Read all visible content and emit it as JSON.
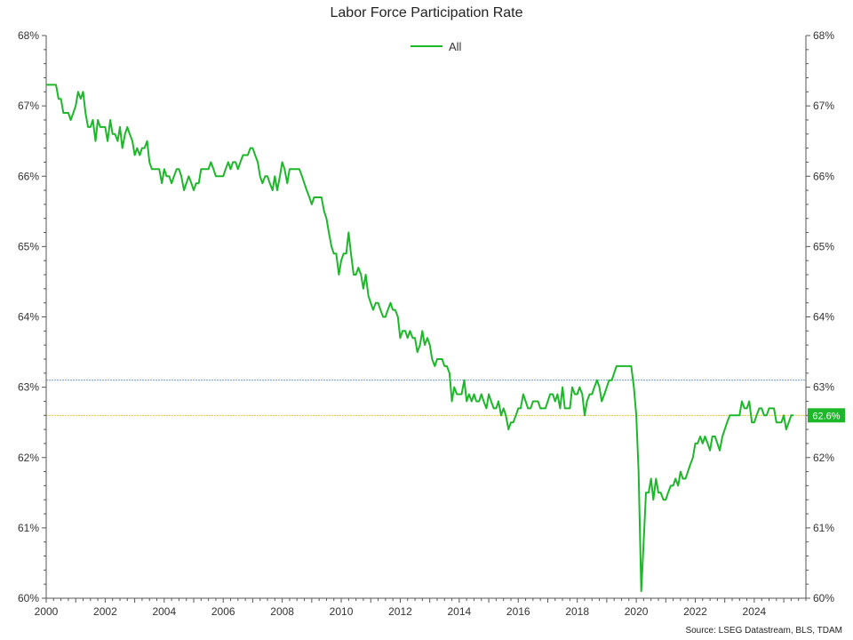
{
  "chart_data": {
    "type": "line",
    "title": "Labor Force Participation Rate",
    "source": "Source: LSEG Datastream, BLS, TDAM",
    "xlabel": "",
    "ylabel": "",
    "xlim": [
      2000,
      2025.75
    ],
    "ylim": [
      60,
      68
    ],
    "x_ticks": [
      2000,
      2002,
      2004,
      2006,
      2008,
      2010,
      2012,
      2014,
      2016,
      2018,
      2020,
      2022,
      2024
    ],
    "y_ticks": [
      "60%",
      "61%",
      "62%",
      "63%",
      "64%",
      "65%",
      "66%",
      "67%",
      "68%"
    ],
    "grid": false,
    "legend_position": "top-center",
    "last_value_label": "62.6%",
    "reference_lines": [
      {
        "y": 63.1,
        "color": "#5b8fc7",
        "style": "dotted"
      },
      {
        "y": 62.6,
        "color": "#e0c020",
        "style": "dotted"
      }
    ],
    "series": [
      {
        "name": "All",
        "color": "#1db82a",
        "points": [
          [
            2000.0,
            67.3
          ],
          [
            2000.17,
            67.3
          ],
          [
            2000.33,
            67.3
          ],
          [
            2000.42,
            67.1
          ],
          [
            2000.5,
            67.1
          ],
          [
            2000.58,
            66.9
          ],
          [
            2000.75,
            66.9
          ],
          [
            2000.83,
            66.8
          ],
          [
            2000.92,
            66.9
          ],
          [
            2001.0,
            67.0
          ],
          [
            2001.08,
            67.2
          ],
          [
            2001.17,
            67.1
          ],
          [
            2001.25,
            67.2
          ],
          [
            2001.33,
            66.9
          ],
          [
            2001.42,
            66.7
          ],
          [
            2001.5,
            66.7
          ],
          [
            2001.58,
            66.8
          ],
          [
            2001.67,
            66.5
          ],
          [
            2001.75,
            66.8
          ],
          [
            2001.83,
            66.7
          ],
          [
            2001.92,
            66.7
          ],
          [
            2002.0,
            66.7
          ],
          [
            2002.08,
            66.5
          ],
          [
            2002.17,
            66.8
          ],
          [
            2002.25,
            66.6
          ],
          [
            2002.33,
            66.6
          ],
          [
            2002.42,
            66.5
          ],
          [
            2002.5,
            66.7
          ],
          [
            2002.58,
            66.4
          ],
          [
            2002.67,
            66.6
          ],
          [
            2002.75,
            66.7
          ],
          [
            2002.83,
            66.6
          ],
          [
            2002.92,
            66.5
          ],
          [
            2003.0,
            66.3
          ],
          [
            2003.08,
            66.4
          ],
          [
            2003.17,
            66.3
          ],
          [
            2003.25,
            66.4
          ],
          [
            2003.33,
            66.4
          ],
          [
            2003.42,
            66.5
          ],
          [
            2003.5,
            66.2
          ],
          [
            2003.58,
            66.1
          ],
          [
            2003.67,
            66.1
          ],
          [
            2003.75,
            66.1
          ],
          [
            2003.83,
            66.1
          ],
          [
            2003.92,
            65.9
          ],
          [
            2004.0,
            66.1
          ],
          [
            2004.08,
            66.0
          ],
          [
            2004.17,
            66.0
          ],
          [
            2004.25,
            65.9
          ],
          [
            2004.33,
            66.0
          ],
          [
            2004.42,
            66.1
          ],
          [
            2004.5,
            66.1
          ],
          [
            2004.58,
            66.0
          ],
          [
            2004.67,
            65.8
          ],
          [
            2004.75,
            65.9
          ],
          [
            2004.83,
            66.0
          ],
          [
            2004.92,
            65.9
          ],
          [
            2005.0,
            65.8
          ],
          [
            2005.08,
            65.9
          ],
          [
            2005.17,
            65.9
          ],
          [
            2005.25,
            66.1
          ],
          [
            2005.33,
            66.1
          ],
          [
            2005.42,
            66.1
          ],
          [
            2005.5,
            66.1
          ],
          [
            2005.58,
            66.2
          ],
          [
            2005.67,
            66.1
          ],
          [
            2005.75,
            66.0
          ],
          [
            2005.83,
            66.0
          ],
          [
            2005.92,
            66.0
          ],
          [
            2006.0,
            66.0
          ],
          [
            2006.08,
            66.1
          ],
          [
            2006.17,
            66.2
          ],
          [
            2006.25,
            66.1
          ],
          [
            2006.33,
            66.2
          ],
          [
            2006.42,
            66.2
          ],
          [
            2006.5,
            66.1
          ],
          [
            2006.58,
            66.2
          ],
          [
            2006.67,
            66.3
          ],
          [
            2006.75,
            66.3
          ],
          [
            2006.83,
            66.3
          ],
          [
            2006.92,
            66.4
          ],
          [
            2007.0,
            66.4
          ],
          [
            2007.08,
            66.3
          ],
          [
            2007.17,
            66.2
          ],
          [
            2007.25,
            66.0
          ],
          [
            2007.33,
            65.9
          ],
          [
            2007.42,
            66.0
          ],
          [
            2007.5,
            66.0
          ],
          [
            2007.58,
            65.9
          ],
          [
            2007.67,
            65.8
          ],
          [
            2007.75,
            66.0
          ],
          [
            2007.83,
            65.8
          ],
          [
            2007.92,
            66.0
          ],
          [
            2008.0,
            66.2
          ],
          [
            2008.08,
            66.1
          ],
          [
            2008.17,
            65.9
          ],
          [
            2008.25,
            66.1
          ],
          [
            2008.33,
            66.1
          ],
          [
            2008.42,
            66.1
          ],
          [
            2008.5,
            66.1
          ],
          [
            2008.58,
            66.1
          ],
          [
            2008.67,
            66.0
          ],
          [
            2008.75,
            65.9
          ],
          [
            2008.83,
            65.8
          ],
          [
            2008.92,
            65.7
          ],
          [
            2009.0,
            65.6
          ],
          [
            2009.08,
            65.7
          ],
          [
            2009.17,
            65.7
          ],
          [
            2009.25,
            65.7
          ],
          [
            2009.33,
            65.7
          ],
          [
            2009.42,
            65.5
          ],
          [
            2009.5,
            65.4
          ],
          [
            2009.58,
            65.2
          ],
          [
            2009.67,
            65.0
          ],
          [
            2009.75,
            64.9
          ],
          [
            2009.83,
            64.9
          ],
          [
            2009.92,
            64.6
          ],
          [
            2010.0,
            64.8
          ],
          [
            2010.08,
            64.9
          ],
          [
            2010.17,
            64.9
          ],
          [
            2010.25,
            65.2
          ],
          [
            2010.33,
            64.9
          ],
          [
            2010.42,
            64.6
          ],
          [
            2010.5,
            64.6
          ],
          [
            2010.58,
            64.7
          ],
          [
            2010.67,
            64.6
          ],
          [
            2010.75,
            64.4
          ],
          [
            2010.83,
            64.6
          ],
          [
            2010.92,
            64.3
          ],
          [
            2011.0,
            64.2
          ],
          [
            2011.08,
            64.1
          ],
          [
            2011.17,
            64.2
          ],
          [
            2011.25,
            64.2
          ],
          [
            2011.33,
            64.1
          ],
          [
            2011.42,
            64.0
          ],
          [
            2011.5,
            64.0
          ],
          [
            2011.58,
            64.1
          ],
          [
            2011.67,
            64.2
          ],
          [
            2011.75,
            64.1
          ],
          [
            2011.83,
            64.1
          ],
          [
            2011.92,
            64.0
          ],
          [
            2012.0,
            63.7
          ],
          [
            2012.08,
            63.8
          ],
          [
            2012.17,
            63.8
          ],
          [
            2012.25,
            63.7
          ],
          [
            2012.33,
            63.8
          ],
          [
            2012.42,
            63.7
          ],
          [
            2012.5,
            63.7
          ],
          [
            2012.58,
            63.5
          ],
          [
            2012.67,
            63.6
          ],
          [
            2012.75,
            63.8
          ],
          [
            2012.83,
            63.6
          ],
          [
            2012.92,
            63.7
          ],
          [
            2013.0,
            63.6
          ],
          [
            2013.08,
            63.4
          ],
          [
            2013.17,
            63.3
          ],
          [
            2013.25,
            63.4
          ],
          [
            2013.33,
            63.4
          ],
          [
            2013.42,
            63.4
          ],
          [
            2013.5,
            63.3
          ],
          [
            2013.58,
            63.3
          ],
          [
            2013.67,
            63.2
          ],
          [
            2013.75,
            62.8
          ],
          [
            2013.83,
            63.0
          ],
          [
            2013.92,
            62.9
          ],
          [
            2014.0,
            62.9
          ],
          [
            2014.08,
            62.9
          ],
          [
            2014.17,
            63.1
          ],
          [
            2014.25,
            62.8
          ],
          [
            2014.33,
            62.9
          ],
          [
            2014.42,
            62.8
          ],
          [
            2014.5,
            62.9
          ],
          [
            2014.58,
            62.8
          ],
          [
            2014.67,
            62.8
          ],
          [
            2014.75,
            62.9
          ],
          [
            2014.83,
            62.8
          ],
          [
            2014.92,
            62.7
          ],
          [
            2015.0,
            62.9
          ],
          [
            2015.08,
            62.8
          ],
          [
            2015.17,
            62.7
          ],
          [
            2015.25,
            62.7
          ],
          [
            2015.33,
            62.8
          ],
          [
            2015.42,
            62.6
          ],
          [
            2015.5,
            62.7
          ],
          [
            2015.58,
            62.6
          ],
          [
            2015.67,
            62.4
          ],
          [
            2015.75,
            62.5
          ],
          [
            2015.83,
            62.5
          ],
          [
            2015.92,
            62.6
          ],
          [
            2016.0,
            62.7
          ],
          [
            2016.08,
            62.7
          ],
          [
            2016.17,
            62.9
          ],
          [
            2016.25,
            62.8
          ],
          [
            2016.33,
            62.7
          ],
          [
            2016.42,
            62.7
          ],
          [
            2016.5,
            62.8
          ],
          [
            2016.58,
            62.8
          ],
          [
            2016.67,
            62.8
          ],
          [
            2016.75,
            62.7
          ],
          [
            2016.83,
            62.7
          ],
          [
            2016.92,
            62.7
          ],
          [
            2017.0,
            62.8
          ],
          [
            2017.08,
            62.9
          ],
          [
            2017.17,
            62.9
          ],
          [
            2017.25,
            62.8
          ],
          [
            2017.33,
            62.9
          ],
          [
            2017.42,
            62.7
          ],
          [
            2017.5,
            63.0
          ],
          [
            2017.58,
            62.7
          ],
          [
            2017.67,
            62.7
          ],
          [
            2017.75,
            62.7
          ],
          [
            2017.83,
            63.0
          ],
          [
            2017.92,
            62.9
          ],
          [
            2018.0,
            62.9
          ],
          [
            2018.08,
            63.0
          ],
          [
            2018.17,
            62.9
          ],
          [
            2018.25,
            62.6
          ],
          [
            2018.33,
            62.8
          ],
          [
            2018.42,
            62.9
          ],
          [
            2018.5,
            62.9
          ],
          [
            2018.58,
            63.0
          ],
          [
            2018.67,
            63.1
          ],
          [
            2018.75,
            63.0
          ],
          [
            2018.83,
            62.8
          ],
          [
            2018.92,
            62.9
          ],
          [
            2019.0,
            63.0
          ],
          [
            2019.08,
            63.1
          ],
          [
            2019.17,
            63.1
          ],
          [
            2019.25,
            63.2
          ],
          [
            2019.33,
            63.3
          ],
          [
            2019.42,
            63.3
          ],
          [
            2019.5,
            63.3
          ],
          [
            2019.58,
            63.3
          ],
          [
            2019.67,
            63.3
          ],
          [
            2019.75,
            63.3
          ],
          [
            2019.83,
            63.3
          ],
          [
            2019.92,
            63.0
          ],
          [
            2020.0,
            62.6
          ],
          [
            2020.08,
            61.8
          ],
          [
            2020.17,
            60.1
          ],
          [
            2020.25,
            60.8
          ],
          [
            2020.33,
            61.5
          ],
          [
            2020.42,
            61.5
          ],
          [
            2020.5,
            61.7
          ],
          [
            2020.58,
            61.4
          ],
          [
            2020.67,
            61.7
          ],
          [
            2020.75,
            61.5
          ],
          [
            2020.83,
            61.5
          ],
          [
            2020.92,
            61.4
          ],
          [
            2021.0,
            61.4
          ],
          [
            2021.08,
            61.5
          ],
          [
            2021.17,
            61.6
          ],
          [
            2021.25,
            61.6
          ],
          [
            2021.33,
            61.7
          ],
          [
            2021.42,
            61.6
          ],
          [
            2021.5,
            61.8
          ],
          [
            2021.58,
            61.7
          ],
          [
            2021.67,
            61.7
          ],
          [
            2021.75,
            61.8
          ],
          [
            2021.83,
            61.9
          ],
          [
            2021.92,
            62.0
          ],
          [
            2022.0,
            62.2
          ],
          [
            2022.08,
            62.2
          ],
          [
            2022.17,
            62.3
          ],
          [
            2022.25,
            62.2
          ],
          [
            2022.33,
            62.3
          ],
          [
            2022.42,
            62.2
          ],
          [
            2022.5,
            62.1
          ],
          [
            2022.58,
            62.3
          ],
          [
            2022.67,
            62.3
          ],
          [
            2022.75,
            62.2
          ],
          [
            2022.83,
            62.1
          ],
          [
            2022.92,
            62.3
          ],
          [
            2023.0,
            62.4
          ],
          [
            2023.08,
            62.5
          ],
          [
            2023.17,
            62.6
          ],
          [
            2023.25,
            62.6
          ],
          [
            2023.33,
            62.6
          ],
          [
            2023.42,
            62.6
          ],
          [
            2023.5,
            62.6
          ],
          [
            2023.58,
            62.8
          ],
          [
            2023.67,
            62.7
          ],
          [
            2023.75,
            62.7
          ],
          [
            2023.83,
            62.8
          ],
          [
            2023.92,
            62.5
          ],
          [
            2024.0,
            62.5
          ],
          [
            2024.08,
            62.6
          ],
          [
            2024.17,
            62.7
          ],
          [
            2024.25,
            62.7
          ],
          [
            2024.33,
            62.6
          ],
          [
            2024.42,
            62.6
          ],
          [
            2024.5,
            62.7
          ],
          [
            2024.58,
            62.7
          ],
          [
            2024.67,
            62.7
          ],
          [
            2024.75,
            62.5
          ],
          [
            2024.83,
            62.5
          ],
          [
            2024.92,
            62.5
          ],
          [
            2025.0,
            62.6
          ],
          [
            2025.08,
            62.4
          ],
          [
            2025.17,
            62.5
          ],
          [
            2025.25,
            62.6
          ],
          [
            2025.33,
            62.6
          ]
        ]
      }
    ]
  }
}
